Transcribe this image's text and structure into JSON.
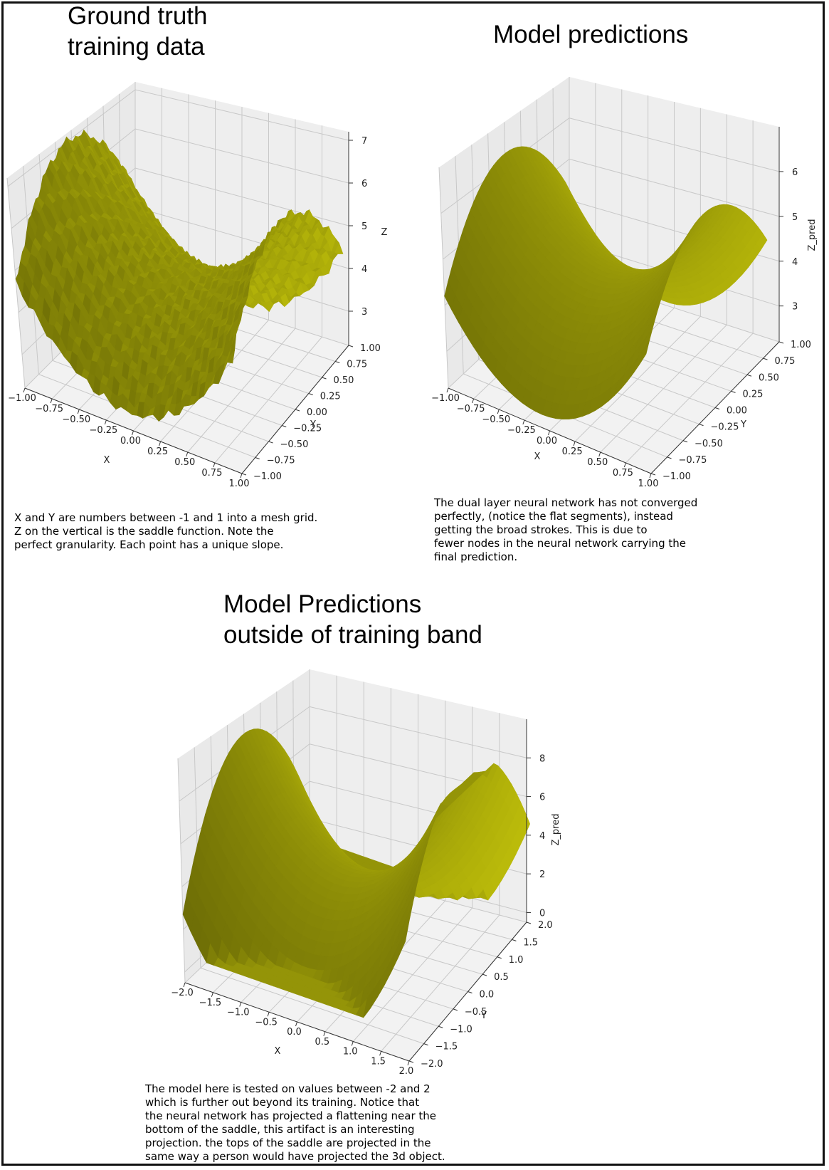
{
  "panels": [
    {
      "title_lines": [
        "Ground truth",
        "training data"
      ],
      "caption": "X and Y are numbers between -1 and 1 into a mesh grid.\nZ on the vertical is the saddle function.  Note the\nperfect granularity.  Each point has a unique slope."
    },
    {
      "title_lines": [
        "Model predictions"
      ],
      "caption": "The dual layer neural network has not converged\nperfectly, (notice the flat segments), instead\ngetting the broad strokes.  This is due to\nfewer nodes in the neural network carrying the\nfinal prediction."
    },
    {
      "title_lines": [
        "Model Predictions",
        "outside of training band"
      ],
      "caption": "The model here is tested on values between -2 and 2\nwhich is further out beyond its training.  Notice that\nthe neural network has projected a flattening near the\nbottom of the saddle, this artifact is an interesting\nprojection.  the tops of the saddle are projected in the\nsame way a person would have projected the 3d object."
    }
  ],
  "chart_data": [
    {
      "type": "surface3d",
      "function": "saddle",
      "xlabel": "X",
      "ylabel": "Y",
      "zlabel": "Z",
      "xlim": [
        -1,
        1
      ],
      "ylim": [
        -1,
        1
      ],
      "zlim": [
        2.2,
        7.2
      ],
      "x_ticks": [
        "−1.00",
        "−0.75",
        "−0.50",
        "−0.25",
        "0.00",
        "0.25",
        "0.50",
        "0.75",
        "1.00"
      ],
      "y_ticks": [
        "−1.00",
        "−0.75",
        "−0.50",
        "−0.25",
        "0.00",
        "0.25",
        "0.50",
        "0.75",
        "1.00"
      ],
      "z_ticks": [
        "3",
        "4",
        "5",
        "6",
        "7"
      ],
      "z_tick_values": [
        3,
        4,
        5,
        6,
        7
      ],
      "grid": true,
      "color": "#b8b800"
    },
    {
      "type": "surface3d",
      "function": "saddle_prediction",
      "xlabel": "X",
      "ylabel": "Y",
      "zlabel": "Z_pred",
      "xlim": [
        -1,
        1
      ],
      "ylim": [
        -1,
        1
      ],
      "zlim": [
        2.2,
        7.0
      ],
      "x_ticks": [
        "−1.00",
        "−0.75",
        "−0.50",
        "−0.25",
        "0.00",
        "0.25",
        "0.50",
        "0.75",
        "1.00"
      ],
      "y_ticks": [
        "−1.00",
        "−0.75",
        "−0.50",
        "−0.25",
        "0.00",
        "0.25",
        "0.50",
        "0.75",
        "1.00"
      ],
      "z_ticks": [
        "3",
        "4",
        "5",
        "6"
      ],
      "z_tick_values": [
        3,
        4,
        5,
        6
      ],
      "grid": true,
      "color": "#b8b800"
    },
    {
      "type": "surface3d",
      "function": "saddle_prediction_extrapolated",
      "xlabel": "X",
      "ylabel": "Y",
      "zlabel": "Z_pred",
      "xlim": [
        -2,
        2
      ],
      "ylim": [
        -2,
        2
      ],
      "zlim": [
        -0.5,
        10
      ],
      "x_ticks": [
        "−2.0",
        "−1.5",
        "−1.0",
        "−0.5",
        "0.0",
        "0.5",
        "1.0",
        "1.5",
        "2.0"
      ],
      "y_ticks": [
        "−2.0",
        "−1.5",
        "−1.0",
        "−0.5",
        "0.0",
        "0.5",
        "1.0",
        "1.5",
        "2.0"
      ],
      "z_ticks": [
        "0",
        "2",
        "4",
        "6",
        "8"
      ],
      "z_tick_values": [
        0,
        2,
        4,
        6,
        8
      ],
      "grid": true,
      "color": "#b8b800"
    }
  ]
}
